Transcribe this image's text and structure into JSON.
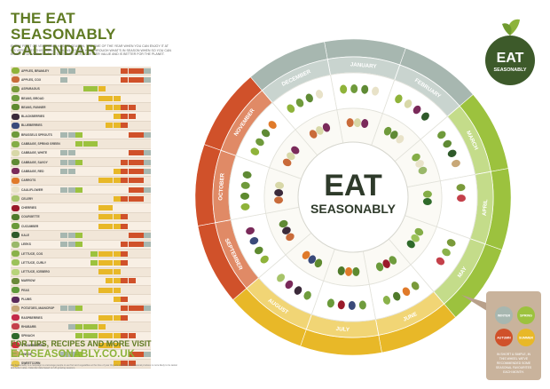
{
  "title": {
    "line1": "THE EAT SEASONABLY",
    "line2": "CALENDAR"
  },
  "intro": "EVERY FRUIT OR VEGETABLE HAS ITS SEASON, THE TIME OF THE YEAR WHEN YOU CAN ENJOY IT AT ITS VERY BEST. THIS SIMPLE TOOL WILL GUIDE YOU THROUGH WHAT'S IN SEASON WHEN SO YOU CAN ENJOY FRUIT AND VEG THAT TASTES BETTER, IS BETTER VALUE AND IS BETTER FOR THE PLANET.",
  "produce": [
    {
      "name": "APPLES, BRAMLEY",
      "color": "#8fb33a",
      "months": [
        1,
        1,
        0,
        0,
        0,
        0,
        0,
        0,
        1,
        1,
        1,
        1
      ]
    },
    {
      "name": "APPLES, COX",
      "color": "#c96b3a",
      "months": [
        1,
        0,
        0,
        0,
        0,
        0,
        0,
        0,
        1,
        1,
        1,
        1
      ]
    },
    {
      "name": "ASPARAGUS",
      "color": "#7a9a3a",
      "months": [
        0,
        0,
        0,
        1,
        1,
        1,
        0,
        0,
        0,
        0,
        0,
        0
      ]
    },
    {
      "name": "BEANS, BROAD",
      "color": "#6f9c3d",
      "months": [
        0,
        0,
        0,
        0,
        0,
        1,
        1,
        1,
        0,
        0,
        0,
        0
      ]
    },
    {
      "name": "BEANS, RUNNER",
      "color": "#5e8a2f",
      "months": [
        0,
        0,
        0,
        0,
        0,
        0,
        1,
        1,
        1,
        1,
        0,
        0
      ]
    },
    {
      "name": "BLACKBERRIES",
      "color": "#3b2a3a",
      "months": [
        0,
        0,
        0,
        0,
        0,
        0,
        0,
        1,
        1,
        1,
        0,
        0
      ]
    },
    {
      "name": "BLUEBERRIES",
      "color": "#3a4a7a",
      "months": [
        0,
        0,
        0,
        0,
        0,
        0,
        1,
        1,
        1,
        0,
        0,
        0
      ]
    },
    {
      "name": "BRUSSELS SPROUTS",
      "color": "#6f9a3b",
      "months": [
        1,
        1,
        1,
        0,
        0,
        0,
        0,
        0,
        0,
        1,
        1,
        1
      ]
    },
    {
      "name": "CABBAGE, SPRING GREEN",
      "color": "#84ad47",
      "months": [
        0,
        0,
        1,
        1,
        1,
        0,
        0,
        0,
        0,
        0,
        0,
        0
      ]
    },
    {
      "name": "CABBAGE, WHITE",
      "color": "#d8d8a8",
      "months": [
        1,
        1,
        0,
        0,
        0,
        0,
        0,
        0,
        0,
        1,
        1,
        1
      ]
    },
    {
      "name": "CABBAGE, SAVOY",
      "color": "#5f8a34",
      "months": [
        1,
        1,
        1,
        0,
        0,
        0,
        0,
        0,
        1,
        1,
        1,
        1
      ]
    },
    {
      "name": "CABBAGE, RED",
      "color": "#7a2a5a",
      "months": [
        1,
        1,
        0,
        0,
        0,
        0,
        0,
        1,
        1,
        1,
        1,
        1
      ]
    },
    {
      "name": "CARROTS",
      "color": "#e07a2a",
      "months": [
        0,
        0,
        0,
        0,
        0,
        1,
        1,
        1,
        1,
        1,
        1,
        0
      ]
    },
    {
      "name": "CAULIFLOWER",
      "color": "#e8e2c8",
      "months": [
        1,
        1,
        1,
        0,
        0,
        0,
        0,
        0,
        0,
        1,
        1,
        1
      ]
    },
    {
      "name": "CELERY",
      "color": "#a7c46a",
      "months": [
        0,
        0,
        0,
        0,
        0,
        0,
        0,
        1,
        1,
        1,
        1,
        0
      ]
    },
    {
      "name": "CHERRIES",
      "color": "#9a1a2a",
      "months": [
        0,
        0,
        0,
        0,
        0,
        1,
        1,
        0,
        0,
        0,
        0,
        0
      ]
    },
    {
      "name": "COURGETTE",
      "color": "#4f7a2a",
      "months": [
        0,
        0,
        0,
        0,
        0,
        1,
        1,
        1,
        1,
        0,
        0,
        0
      ]
    },
    {
      "name": "CUCUMBER",
      "color": "#6a9a3a",
      "months": [
        0,
        0,
        0,
        0,
        0,
        1,
        1,
        1,
        1,
        0,
        0,
        0
      ]
    },
    {
      "name": "KALE",
      "color": "#2f5a2a",
      "months": [
        1,
        1,
        1,
        0,
        0,
        0,
        0,
        0,
        0,
        1,
        1,
        1
      ]
    },
    {
      "name": "LEEKS",
      "color": "#9ab86a",
      "months": [
        1,
        1,
        1,
        0,
        0,
        0,
        0,
        0,
        1,
        1,
        1,
        1
      ]
    },
    {
      "name": "LETTUCE, COS",
      "color": "#8ab24a",
      "months": [
        0,
        0,
        0,
        0,
        1,
        1,
        1,
        1,
        1,
        0,
        0,
        0
      ]
    },
    {
      "name": "LETTUCE, CURLY",
      "color": "#9cc25a",
      "months": [
        0,
        0,
        0,
        0,
        1,
        1,
        1,
        1,
        1,
        0,
        0,
        0
      ]
    },
    {
      "name": "LETTUCE, ICEBERG",
      "color": "#b8d47a",
      "months": [
        0,
        0,
        0,
        0,
        0,
        1,
        1,
        1,
        0,
        0,
        0,
        0
      ]
    },
    {
      "name": "MARROW",
      "color": "#6a8a3a",
      "months": [
        0,
        0,
        0,
        0,
        0,
        0,
        1,
        1,
        1,
        1,
        0,
        0
      ]
    },
    {
      "name": "PEAS",
      "color": "#5f9a3a",
      "months": [
        0,
        0,
        0,
        0,
        0,
        1,
        1,
        1,
        0,
        0,
        0,
        0
      ]
    },
    {
      "name": "PLUMS",
      "color": "#5a2a5a",
      "months": [
        0,
        0,
        0,
        0,
        0,
        0,
        0,
        1,
        1,
        0,
        0,
        0
      ]
    },
    {
      "name": "POTATOES, MAINCROP",
      "color": "#c8a878",
      "months": [
        1,
        1,
        1,
        0,
        0,
        0,
        0,
        0,
        1,
        1,
        1,
        1
      ]
    },
    {
      "name": "RASPBERRIES",
      "color": "#c42a4a",
      "months": [
        0,
        0,
        0,
        0,
        0,
        1,
        1,
        1,
        1,
        0,
        0,
        0
      ]
    },
    {
      "name": "RHUBARB",
      "color": "#c4404a",
      "months": [
        0,
        1,
        1,
        1,
        1,
        1,
        0,
        0,
        0,
        0,
        0,
        0
      ]
    },
    {
      "name": "SPINACH",
      "color": "#2f6a2a",
      "months": [
        0,
        0,
        1,
        1,
        1,
        1,
        1,
        1,
        1,
        1,
        0,
        0
      ]
    },
    {
      "name": "STRAWBERRIES",
      "color": "#d42a3a",
      "months": [
        0,
        0,
        0,
        0,
        0,
        1,
        1,
        1,
        0,
        0,
        0,
        0
      ]
    },
    {
      "name": "SWEDE",
      "color": "#c8a860",
      "months": [
        1,
        1,
        1,
        0,
        0,
        0,
        0,
        0,
        0,
        1,
        1,
        1
      ]
    },
    {
      "name": "SWEETCORN",
      "color": "#e8c84a",
      "months": [
        0,
        0,
        0,
        0,
        0,
        0,
        0,
        1,
        1,
        1,
        0,
        0
      ]
    }
  ],
  "season_colors": {
    "winter": "#a7b7b0",
    "spring": "#9cc23e",
    "summer": "#e8b828",
    "autumn": "#d0512a"
  },
  "months": [
    {
      "label": "JANUARY",
      "season": "winter"
    },
    {
      "label": "FEBRUARY",
      "season": "winter"
    },
    {
      "label": "MARCH",
      "season": "spring"
    },
    {
      "label": "APRIL",
      "season": "spring"
    },
    {
      "label": "MAY",
      "season": "spring"
    },
    {
      "label": "JUNE",
      "season": "summer"
    },
    {
      "label": "JULY",
      "season": "summer"
    },
    {
      "label": "AUGUST",
      "season": "summer"
    },
    {
      "label": "SEPTEMBER",
      "season": "autumn"
    },
    {
      "label": "OCTOBER",
      "season": "autumn"
    },
    {
      "label": "NOVEMBER",
      "season": "autumn"
    },
    {
      "label": "DECEMBER",
      "season": "winter"
    }
  ],
  "center": {
    "line1": "EAT",
    "line2": "SEASONABLY"
  },
  "logo": {
    "line1": "EAT",
    "line2": "SEASONABLY"
  },
  "legend": {
    "note": "IN SHORT & SIMPLE, IN THIS WHEEL WE'VE RECOMMENDED SOME SEASONAL FAVOURITES EACH MONTH.",
    "keys": [
      {
        "label": "WINTER",
        "season": "winter"
      },
      {
        "label": "SPRING",
        "season": "spring"
      },
      {
        "label": "AUTUMN",
        "season": "autumn"
      },
      {
        "label": "SUMMER",
        "season": "summer"
      }
    ]
  },
  "footer": {
    "tips": "FOR TIPS, RECIPES AND MORE VISIT",
    "url": "EATSEASONABLY.CO.UK",
    "fine": "Eat Seasonably is a campaign to encourage people to eat fruit and vegetables at the time of year they are at their best. Seasonal produce is more likely to be tastier and better value. Calendar data based on UK growing seasons."
  }
}
